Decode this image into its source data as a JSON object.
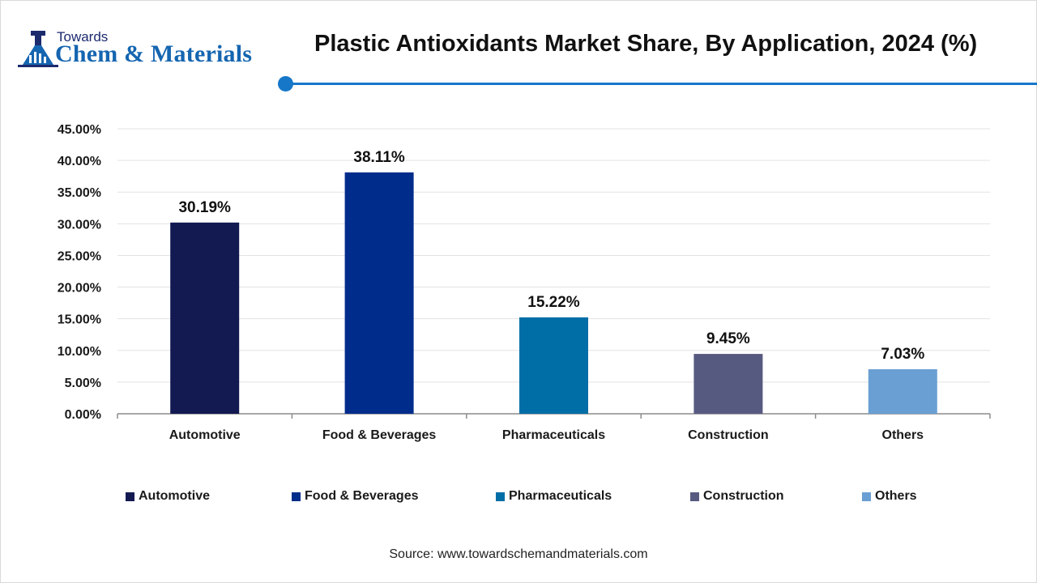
{
  "brand": {
    "line1": "Towards",
    "line2": "Chem & Materials"
  },
  "title": "Plastic Antioxidants Market Share, By Application, 2024 (%)",
  "source": "Source: www.towardschemandmaterials.com",
  "chart_data": {
    "type": "bar",
    "categories": [
      "Automotive",
      "Food & Beverages",
      "Pharmaceuticals",
      "Construction",
      "Others"
    ],
    "values": [
      30.19,
      38.11,
      15.22,
      9.45,
      7.03
    ],
    "value_labels": [
      "30.19%",
      "38.11%",
      "15.22%",
      "9.45%",
      "7.03%"
    ],
    "colors": [
      "#131a52",
      "#002d8c",
      "#006ea6",
      "#575a80",
      "#6a9fd3"
    ],
    "ylim": [
      0,
      45
    ],
    "yticks": [
      0,
      5,
      10,
      15,
      20,
      25,
      30,
      35,
      40,
      45
    ],
    "ytick_labels": [
      "0.00%",
      "5.00%",
      "10.00%",
      "15.00%",
      "20.00%",
      "25.00%",
      "30.00%",
      "35.00%",
      "40.00%",
      "45.00%"
    ],
    "grid": true,
    "legend_position": "bottom",
    "title": "Plastic Antioxidants Market Share, By Application, 2024 (%)",
    "xlabel": "",
    "ylabel": ""
  }
}
